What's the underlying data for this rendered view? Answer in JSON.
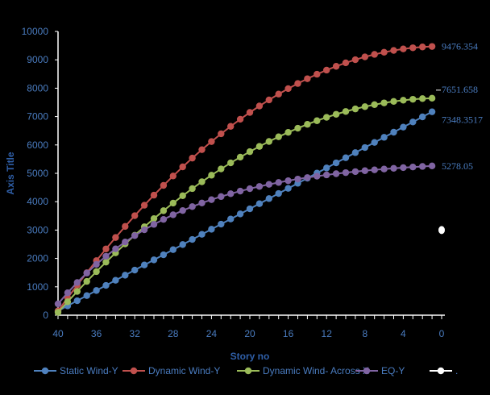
{
  "chart_data": {
    "type": "line",
    "xlabel": "Story no",
    "ylabel": "Axis Title",
    "xlim": [
      40,
      0
    ],
    "ylim": [
      0,
      10000
    ],
    "x_ticks": [
      "40",
      "36",
      "32",
      "28",
      "24",
      "20",
      "16",
      "12",
      "8",
      "4",
      "0"
    ],
    "y_ticks": [
      "0",
      "1000",
      "2000",
      "3000",
      "4000",
      "5000",
      "6000",
      "7000",
      "8000",
      "9000",
      "10000"
    ],
    "legend_position": "bottom",
    "series": [
      {
        "name": "Static Wind-Y",
        "color": "#4f81bd",
        "kind": "linear",
        "start": 150,
        "end": 7348.3517,
        "end_label": "7348.3517"
      },
      {
        "name": "Dynamic Wind-Y",
        "color": "#c0504d",
        "kind": "quadratic",
        "start": 150,
        "end": 9476.354,
        "end_label": "9476.354"
      },
      {
        "name": "Dynamic Wind- Across X",
        "color": "#9bbb59",
        "kind": "quadratic",
        "start": 100,
        "end": 7651.658,
        "end_label": "7651.658"
      },
      {
        "name": "EQ-Y",
        "color": "#8064a2",
        "kind": "saturating",
        "start": 400,
        "end": 5278.05,
        "end_label": "5278.05"
      },
      {
        "name": ".",
        "color": "#ffffff",
        "kind": "point",
        "x": 0,
        "y": 3000,
        "end_label": ""
      }
    ]
  }
}
